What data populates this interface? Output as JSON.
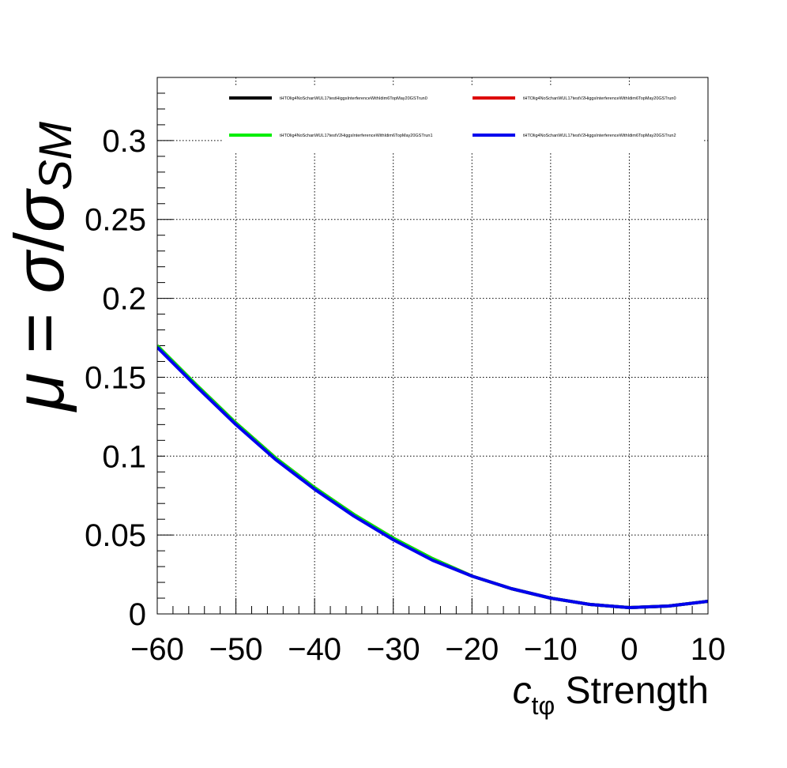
{
  "chart_data": {
    "type": "line",
    "title": "",
    "xlabel": {
      "symbol": "c",
      "subscript": "tφ",
      "text": "Strength"
    },
    "ylabel": {
      "mu": "μ",
      "eq": " = ",
      "sigma": "σ",
      "slash": "/",
      "sigma_sm": "σ",
      "sm_sub": "SM"
    },
    "xlim": [
      -60,
      10
    ],
    "ylim": [
      0,
      0.34
    ],
    "xticks": [
      -60,
      -50,
      -40,
      -30,
      -20,
      -10,
      0,
      10
    ],
    "xtick_labels": [
      "−60",
      "−50",
      "−40",
      "−30",
      "−20",
      "−10",
      "0",
      "10"
    ],
    "yticks": [
      0,
      0.05,
      0.1,
      0.15,
      0.2,
      0.25,
      0.3
    ],
    "ytick_labels": [
      "0",
      "0.05",
      "0.1",
      "0.15",
      "0.2",
      "0.25",
      "0.3"
    ],
    "grid": true,
    "legend_position": "top",
    "x": [
      -60,
      -55,
      -50,
      -45,
      -40,
      -35,
      -30,
      -25,
      -20,
      -15,
      -10,
      -5,
      0,
      5,
      10
    ],
    "series": [
      {
        "name": "tHTOlig4NoSchanWUL17testHiggsInterferenceWithIdim6TopMay20GSTrun0",
        "color": "#000000",
        "values": [
          0.17,
          0.145,
          0.121,
          0.099,
          0.08,
          0.063,
          0.048,
          0.035,
          0.024,
          0.016,
          0.01,
          0.006,
          0.004,
          0.005,
          0.008
        ]
      },
      {
        "name": "tHTOlig4NoSchanWUL17testV2HiggsInterferenceWithIdim6TopMay20GSTrun0",
        "color": "#dd0000",
        "values": [
          0.17,
          0.145,
          0.121,
          0.099,
          0.08,
          0.063,
          0.048,
          0.035,
          0.024,
          0.016,
          0.01,
          0.006,
          0.004,
          0.005,
          0.008
        ]
      },
      {
        "name": "tHTOlig4NoSchanWUL17testV2HiggsInterferenceWithIdim6TopMay20GSTrun1",
        "color": "#00ee00",
        "values": [
          0.17,
          0.145,
          0.121,
          0.099,
          0.08,
          0.063,
          0.048,
          0.035,
          0.024,
          0.016,
          0.01,
          0.006,
          0.004,
          0.005,
          0.008
        ]
      },
      {
        "name": "tHTOlig4NoSchanWUL17testV2HiggsInterferenceWithIdim6TopMay20GSTrun2",
        "color": "#0000ee",
        "values": [
          0.169,
          0.144,
          0.12,
          0.098,
          0.079,
          0.062,
          0.047,
          0.034,
          0.024,
          0.016,
          0.01,
          0.006,
          0.004,
          0.005,
          0.008
        ]
      }
    ]
  }
}
